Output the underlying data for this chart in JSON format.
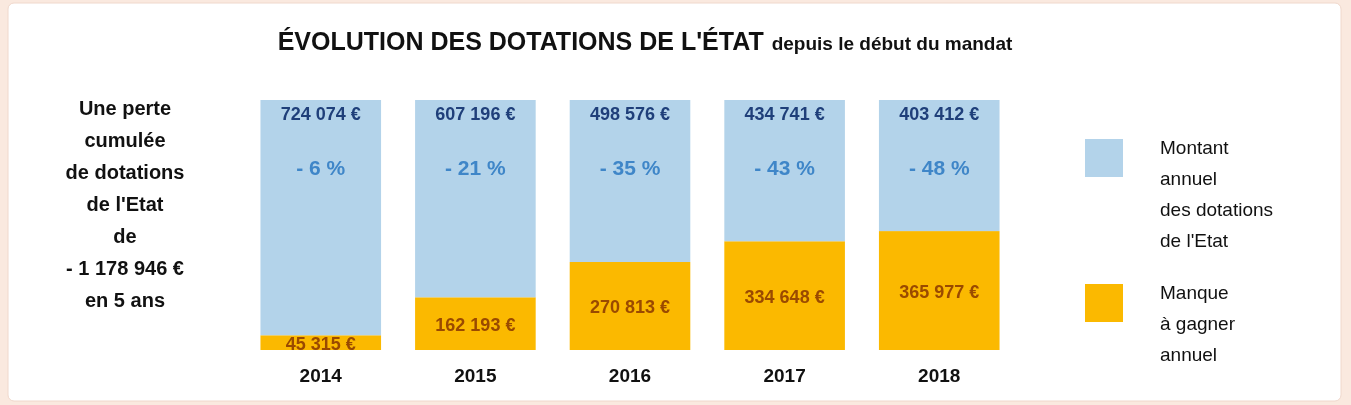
{
  "chart_data": {
    "type": "bar",
    "title": "ÉVOLUTION DES DOTATIONS DE L'ÉTAT",
    "subtitle": "depuis le début du mandat",
    "categories": [
      "2014",
      "2015",
      "2016",
      "2017",
      "2018"
    ],
    "stacked": true,
    "legend": "right",
    "series": [
      {
        "name": "Manque\nà gagner\nannuel",
        "color": "#fbb900",
        "values": [
          45315,
          162193,
          270813,
          334648,
          365977
        ],
        "value_labels": [
          "45 315 €",
          "162 193 €",
          "270 813 €",
          "334 648 €",
          "365 977 €"
        ]
      },
      {
        "name": "Montant\nannuel\ndes dotations\nde l'Etat",
        "color": "#b3d3ea",
        "values": [
          724074,
          607196,
          498576,
          434741,
          403412
        ],
        "value_labels": [
          "724 074 €",
          "607 196 €",
          "498 576 €",
          "434 741 €",
          "403 412 €"
        ]
      }
    ],
    "annotations": [
      "- 6 %",
      "- 21 %",
      "- 35 %",
      "- 43 %",
      "- 48 %",
      "Une perte\ncumulée\nde dotations\nde l'Etat\nde\n- 1 178 946 €\nen 5 ans"
    ]
  }
}
